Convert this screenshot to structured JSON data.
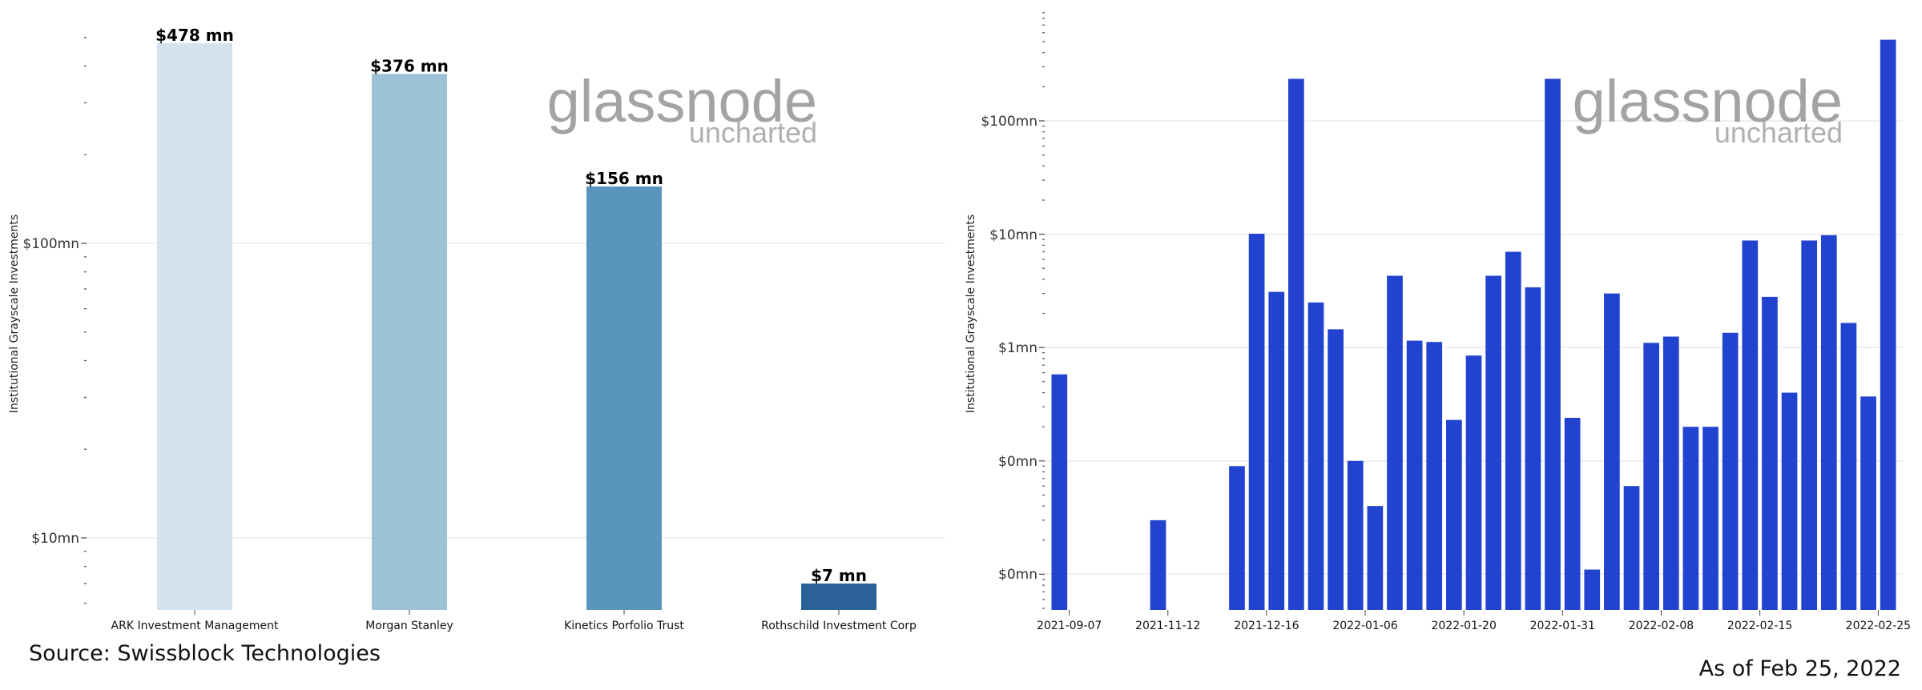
{
  "watermark": {
    "brand": "glassnode",
    "sub": "uncharted"
  },
  "footer": {
    "source": "Source: Swissblock Technologies",
    "as_of": "As of Feb 25, 2022"
  },
  "chart_data": [
    {
      "type": "bar",
      "ylabel": "Institutional Grayscale Investments",
      "yscale": "log",
      "grid": true,
      "y_tick_labels": [
        "$100mn",
        "$10mn"
      ],
      "categories": [
        "ARK Investment Management",
        "Morgan Stanley",
        "Kinetics Porfolio Trust",
        "Rothschild Investment Corp"
      ],
      "values": [
        478,
        376,
        156,
        7
      ],
      "value_unit": "$ mn",
      "data_labels": [
        "$478 mn",
        "$376 mn",
        "$156 mn",
        "$7 mn"
      ],
      "colors": [
        "#d4e2ef",
        "#9dc2d6",
        "#5a95bb",
        "#2a6298"
      ]
    },
    {
      "type": "bar",
      "ylabel": "Institutional Grayscale Investments",
      "yscale": "log",
      "grid": true,
      "y_tick_labels": [
        "$100mn",
        "$10mn",
        "$1mn",
        "$0mn",
        "$0mn"
      ],
      "x_tick_labels": [
        "2021-09-07",
        "2021-11-12",
        "2021-12-16",
        "2022-01-06",
        "2022-01-20",
        "2022-01-31",
        "2022-02-08",
        "2022-02-15",
        "2022-02-25"
      ],
      "bar_color": "#2143d0",
      "bar_slots": 43,
      "tick_slots": [
        1,
        6,
        11,
        16,
        21,
        26,
        31,
        36,
        42
      ],
      "values_mn": [
        0.58,
        null,
        null,
        null,
        null,
        0.03,
        null,
        null,
        null,
        0.09,
        10.1,
        3.1,
        235,
        2.5,
        1.45,
        0.1,
        0.04,
        4.3,
        1.15,
        1.12,
        0.23,
        0.85,
        4.3,
        7.0,
        3.4,
        235,
        0.24,
        0.011,
        3.0,
        0.06,
        1.1,
        1.25,
        0.2,
        0.2,
        1.35,
        8.8,
        2.8,
        0.4,
        8.8,
        9.8,
        1.65,
        0.37,
        520
      ]
    }
  ]
}
